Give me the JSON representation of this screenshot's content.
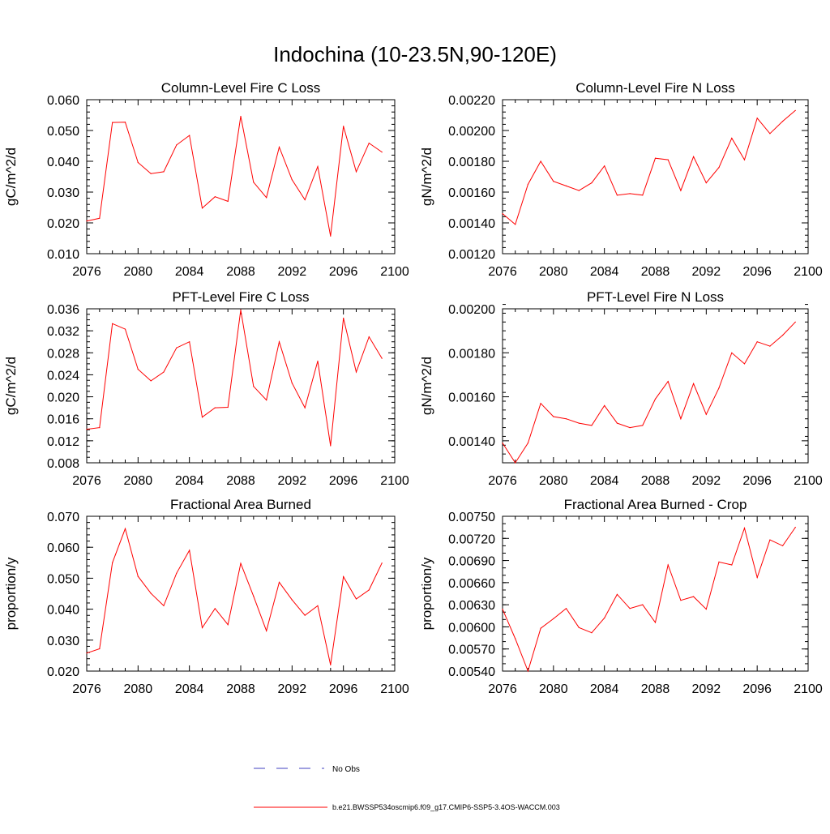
{
  "title": "Indochina (10-23.5N,90-120E)",
  "colors": {
    "series": "#ff0000",
    "obs": "#4040c0",
    "axis": "#000000"
  },
  "legend": {
    "obs_label": "No Obs",
    "model_label": "b.e21.BWSSP534oscmip6.f09_g17.CMIP6-SSP5-3.4OS-WACCM.003"
  },
  "chart_data": [
    {
      "type": "line",
      "title": "Column-Level Fire C Loss",
      "ylabel": "gC/m^2/d",
      "xlim": [
        2076,
        2100
      ],
      "ylim": [
        0.01,
        0.06
      ],
      "xticks": [
        2076,
        2080,
        2084,
        2088,
        2092,
        2096,
        2100
      ],
      "yticks": [
        "0.010",
        "0.020",
        "0.030",
        "0.040",
        "0.050",
        "0.060"
      ],
      "yminor": 0.002,
      "x": [
        2076,
        2077,
        2078,
        2079,
        2080,
        2081,
        2082,
        2083,
        2084,
        2085,
        2086,
        2087,
        2088,
        2089,
        2090,
        2091,
        2092,
        2093,
        2094,
        2095,
        2096,
        2097,
        2098,
        2099
      ],
      "values": [
        0.0206,
        0.0215,
        0.0526,
        0.0527,
        0.0396,
        0.036,
        0.0366,
        0.0453,
        0.0484,
        0.0248,
        0.0285,
        0.027,
        0.0546,
        0.0332,
        0.0282,
        0.0446,
        0.034,
        0.0275,
        0.0383,
        0.0157,
        0.0514,
        0.0366,
        0.0459,
        0.043
      ]
    },
    {
      "type": "line",
      "title": "Column-Level Fire N Loss",
      "ylabel": "gN/m^2/d",
      "xlim": [
        2076,
        2100
      ],
      "ylim": [
        0.0012,
        0.0022
      ],
      "xticks": [
        2076,
        2080,
        2084,
        2088,
        2092,
        2096,
        2100
      ],
      "yticks": [
        "0.00120",
        "0.00140",
        "0.00160",
        "0.00180",
        "0.00200",
        "0.00220"
      ],
      "yminor": 4e-05,
      "x": [
        2076,
        2077,
        2078,
        2079,
        2080,
        2081,
        2082,
        2083,
        2084,
        2085,
        2086,
        2087,
        2088,
        2089,
        2090,
        2091,
        2092,
        2093,
        2094,
        2095,
        2096,
        2097,
        2098,
        2099
      ],
      "values": [
        0.00146,
        0.00139,
        0.00165,
        0.0018,
        0.00167,
        0.00164,
        0.00161,
        0.00166,
        0.00177,
        0.00158,
        0.00159,
        0.00158,
        0.00182,
        0.00181,
        0.00161,
        0.00183,
        0.00166,
        0.00176,
        0.00195,
        0.00181,
        0.00208,
        0.00198,
        0.00206,
        0.00213
      ]
    },
    {
      "type": "line",
      "title": "PFT-Level Fire C Loss",
      "ylabel": "gC/m^2/d",
      "xlim": [
        2076,
        2100
      ],
      "ylim": [
        0.008,
        0.036
      ],
      "xticks": [
        2076,
        2080,
        2084,
        2088,
        2092,
        2096,
        2100
      ],
      "yticks": [
        "0.008",
        "0.012",
        "0.016",
        "0.020",
        "0.024",
        "0.028",
        "0.032",
        "0.036"
      ],
      "yminor": 0.001,
      "x": [
        2076,
        2077,
        2078,
        2079,
        2080,
        2081,
        2082,
        2083,
        2084,
        2085,
        2086,
        2087,
        2088,
        2089,
        2090,
        2091,
        2092,
        2093,
        2094,
        2095,
        2096,
        2097,
        2098,
        2099
      ],
      "values": [
        0.0141,
        0.0144,
        0.0333,
        0.0323,
        0.025,
        0.0229,
        0.0245,
        0.0289,
        0.03,
        0.0163,
        0.018,
        0.0181,
        0.0358,
        0.0219,
        0.0194,
        0.03,
        0.0225,
        0.018,
        0.0265,
        0.0111,
        0.0343,
        0.0245,
        0.0309,
        0.027
      ]
    },
    {
      "type": "line",
      "title": "PFT-Level Fire N Loss",
      "ylabel": "gN/m^2/d",
      "xlim": [
        2076,
        2100
      ],
      "ylim": [
        0.0013,
        0.002
      ],
      "xticks": [
        2076,
        2080,
        2084,
        2088,
        2092,
        2096,
        2100
      ],
      "yticks": [
        "0.00140",
        "0.00160",
        "0.00180",
        "0.00200"
      ],
      "yminor": 4e-05,
      "x": [
        2076,
        2077,
        2078,
        2079,
        2080,
        2081,
        2082,
        2083,
        2084,
        2085,
        2086,
        2087,
        2088,
        2089,
        2090,
        2091,
        2092,
        2093,
        2094,
        2095,
        2096,
        2097,
        2098,
        2099
      ],
      "values": [
        0.00139,
        0.0013,
        0.00139,
        0.00157,
        0.00151,
        0.0015,
        0.00148,
        0.00147,
        0.00156,
        0.00148,
        0.00146,
        0.00147,
        0.00159,
        0.00167,
        0.0015,
        0.00166,
        0.00152,
        0.00164,
        0.0018,
        0.00175,
        0.00185,
        0.00183,
        0.00188,
        0.00194
      ]
    },
    {
      "type": "line",
      "title": "Fractional Area Burned",
      "ylabel": "proportion/y",
      "xlim": [
        2076,
        2100
      ],
      "ylim": [
        0.02,
        0.07
      ],
      "xticks": [
        2076,
        2080,
        2084,
        2088,
        2092,
        2096,
        2100
      ],
      "yticks": [
        "0.020",
        "0.030",
        "0.040",
        "0.050",
        "0.060",
        "0.070"
      ],
      "yminor": 0.002,
      "x": [
        2076,
        2077,
        2078,
        2079,
        2080,
        2081,
        2082,
        2083,
        2084,
        2085,
        2086,
        2087,
        2088,
        2089,
        2090,
        2091,
        2092,
        2093,
        2094,
        2095,
        2096,
        2097,
        2098,
        2099
      ],
      "values": [
        0.0258,
        0.0272,
        0.055,
        0.066,
        0.0506,
        0.0451,
        0.0411,
        0.0516,
        0.059,
        0.034,
        0.0402,
        0.035,
        0.0548,
        0.0442,
        0.033,
        0.0487,
        0.043,
        0.038,
        0.0411,
        0.022,
        0.0505,
        0.0433,
        0.0462,
        0.0549
      ]
    },
    {
      "type": "line",
      "title": "Fractional Area Burned - Crop",
      "ylabel": "proportion/y",
      "xlim": [
        2076,
        2100
      ],
      "ylim": [
        0.0054,
        0.0075
      ],
      "xticks": [
        2076,
        2080,
        2084,
        2088,
        2092,
        2096,
        2100
      ],
      "yticks": [
        "0.00540",
        "0.00570",
        "0.00600",
        "0.00630",
        "0.00660",
        "0.00690",
        "0.00720",
        "0.00750"
      ],
      "yminor": 0.0001,
      "x": [
        2076,
        2077,
        2078,
        2079,
        2080,
        2081,
        2082,
        2083,
        2084,
        2085,
        2086,
        2087,
        2088,
        2089,
        2090,
        2091,
        2092,
        2093,
        2094,
        2095,
        2096,
        2097,
        2098,
        2099
      ],
      "values": [
        0.00624,
        0.00584,
        0.0054,
        0.00598,
        0.00611,
        0.00625,
        0.00599,
        0.00592,
        0.00612,
        0.00644,
        0.00625,
        0.0063,
        0.00606,
        0.00684,
        0.00636,
        0.00641,
        0.00624,
        0.00688,
        0.00684,
        0.00734,
        0.00667,
        0.00718,
        0.0071,
        0.00735
      ]
    }
  ]
}
